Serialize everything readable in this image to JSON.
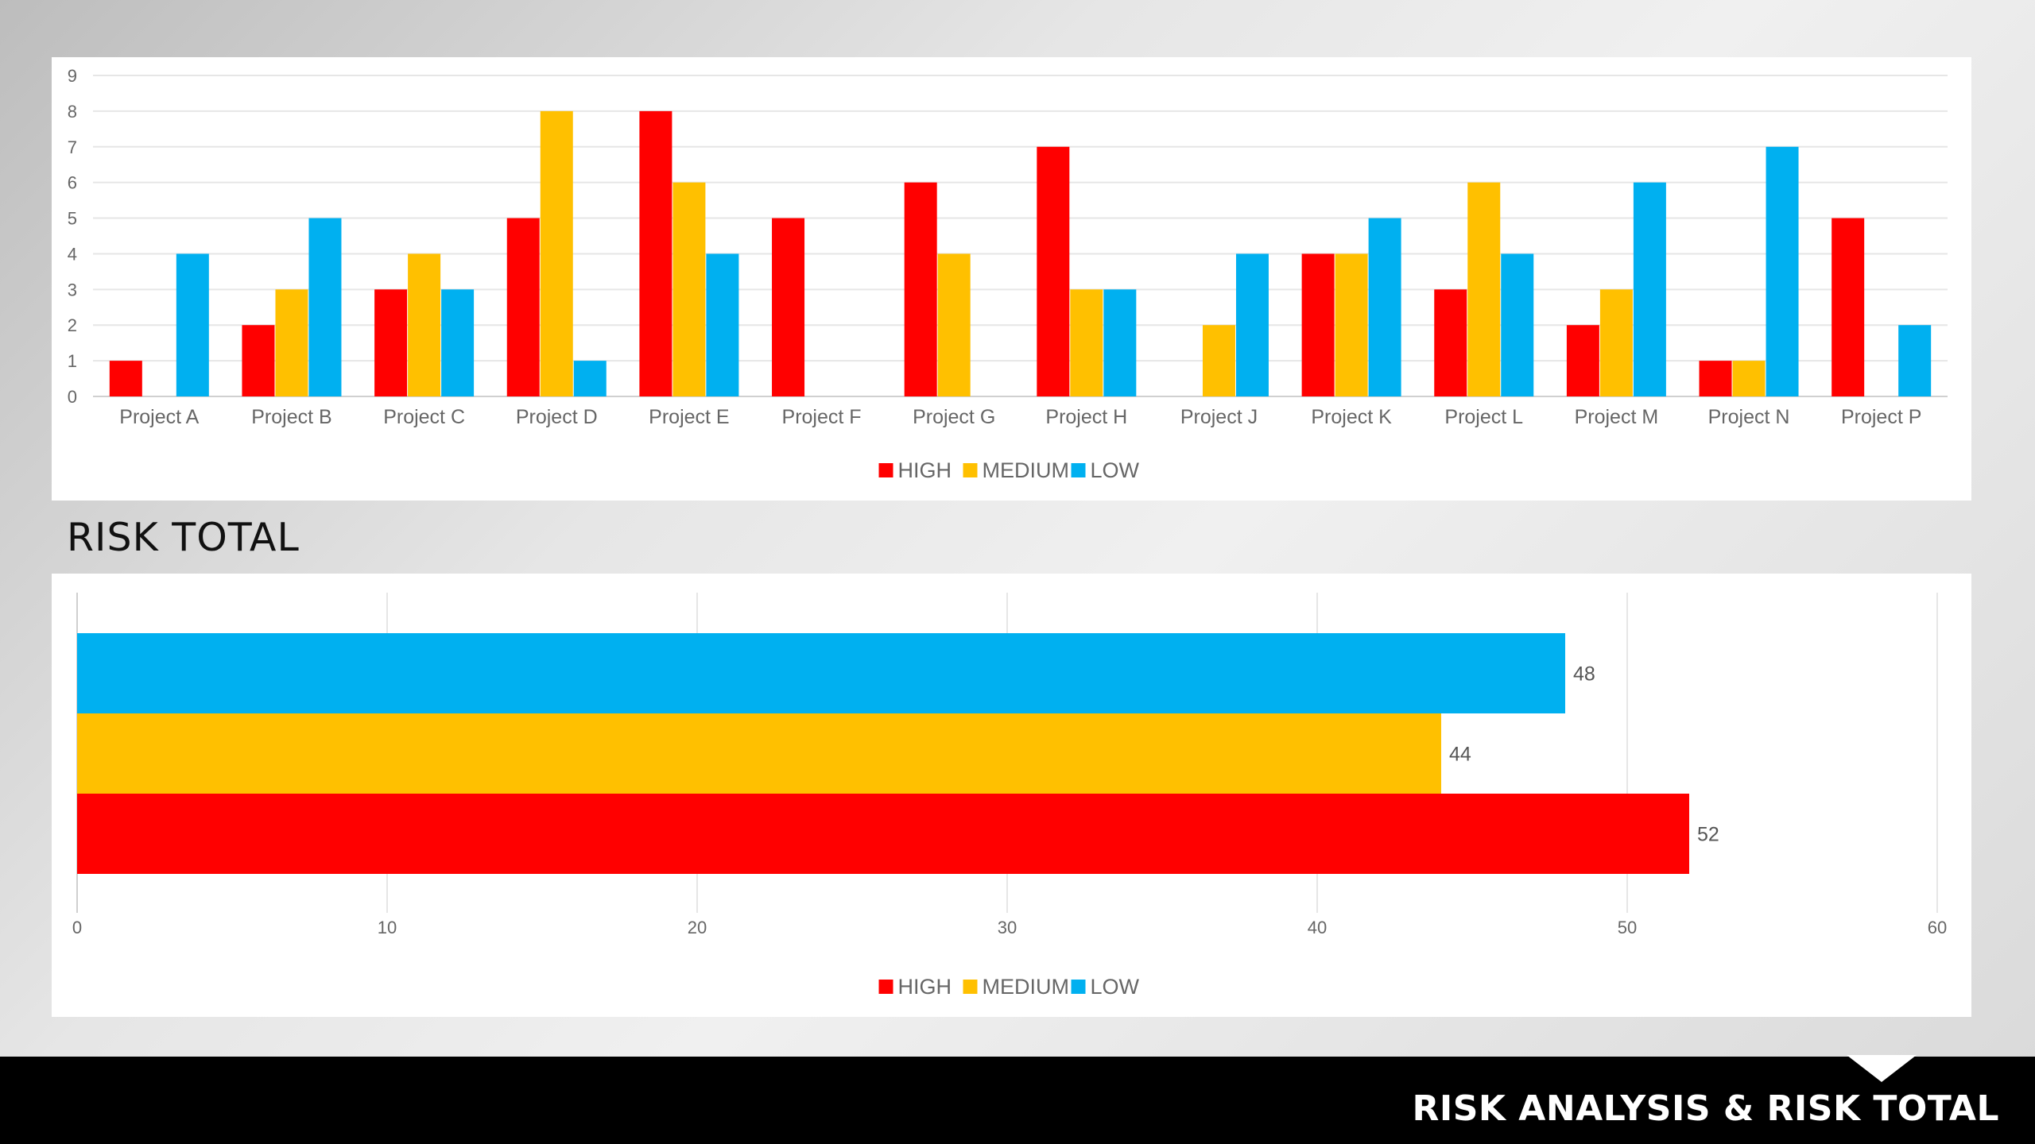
{
  "section_title": "RISK TOTAL",
  "footer_title": "RISK ANALYSIS & RISK TOTAL",
  "colors": {
    "high": "#FF0000",
    "medium": "#FFC000",
    "low": "#00B0F0",
    "grid": "#e6e6e6"
  },
  "legend": [
    "HIGH",
    "MEDIUM",
    "LOW"
  ],
  "chart_data": [
    {
      "type": "bar",
      "orientation": "vertical",
      "categories": [
        "Project A",
        "Project B",
        "Project C",
        "Project D",
        "Project E",
        "Project F",
        "Project G",
        "Project H",
        "Project J",
        "Project K",
        "Project L",
        "Project M",
        "Project N",
        "Project P"
      ],
      "series": [
        {
          "name": "HIGH",
          "color": "#FF0000",
          "values": [
            1,
            2,
            3,
            5,
            8,
            5,
            6,
            7,
            0,
            4,
            3,
            2,
            1,
            5
          ]
        },
        {
          "name": "MEDIUM",
          "color": "#FFC000",
          "values": [
            0,
            3,
            4,
            8,
            6,
            0,
            4,
            3,
            2,
            4,
            6,
            3,
            1,
            0
          ]
        },
        {
          "name": "LOW",
          "color": "#00B0F0",
          "values": [
            4,
            5,
            3,
            1,
            4,
            0,
            0,
            3,
            4,
            5,
            4,
            6,
            7,
            2
          ]
        }
      ],
      "ylim": [
        0,
        9
      ],
      "yticks": [
        "0",
        "1",
        "2",
        "3",
        "4",
        "5",
        "6",
        "7",
        "8",
        "9"
      ],
      "grid": true,
      "legend_position": "bottom"
    },
    {
      "type": "bar",
      "orientation": "horizontal",
      "series": [
        {
          "name": "LOW",
          "color": "#00B0F0",
          "value": 48,
          "label": "48"
        },
        {
          "name": "MEDIUM",
          "color": "#FFC000",
          "value": 44,
          "label": "44"
        },
        {
          "name": "HIGH",
          "color": "#FF0000",
          "value": 52,
          "label": "52"
        }
      ],
      "xlim": [
        0,
        60
      ],
      "xticks": [
        "0",
        "10",
        "20",
        "30",
        "40",
        "50",
        "60"
      ],
      "grid": true,
      "legend_position": "bottom"
    }
  ]
}
